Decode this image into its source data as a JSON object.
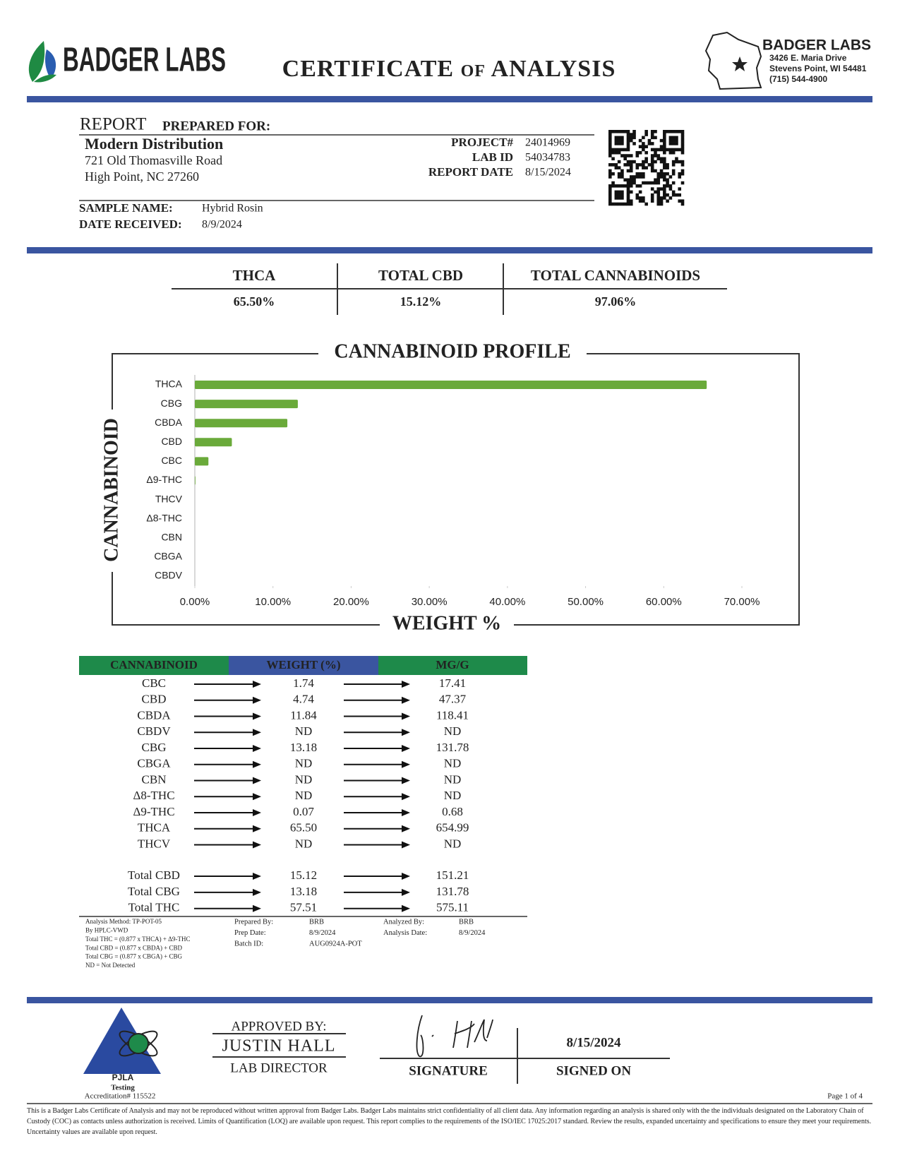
{
  "header": {
    "logo": "BADGER LABS",
    "title": "CERTIFICATE of ANALYSIS",
    "company": "BADGER LABS",
    "address": [
      "3426 E. Maria Drive",
      "Stevens Point, WI 54481",
      "(715) 544-4900"
    ]
  },
  "report": {
    "heading": "REPORT",
    "heading_rest": "PREPARED FOR:",
    "client": "Modern Distribution",
    "client_address": [
      "721 Old Thomasville Road",
      "High Point, NC 27260"
    ],
    "fields": [
      {
        "label": "PROJECT#",
        "value": "24014969"
      },
      {
        "label": "LAB ID",
        "value": "54034783"
      },
      {
        "label": "REPORT DATE",
        "value": "8/15/2024"
      }
    ],
    "sample": [
      {
        "label": "SAMPLE NAME:",
        "value": "Hybrid Rosin"
      },
      {
        "label": "DATE RECEIVED:",
        "value": "8/9/2024"
      }
    ]
  },
  "summary": {
    "headers": [
      "THCA",
      "TOTAL CBD",
      "TOTAL CANNABINOIDS"
    ],
    "values": [
      "65.50%",
      "15.12%",
      "97.06%"
    ]
  },
  "chart_data": {
    "type": "bar",
    "orientation": "horizontal",
    "title": "CANNABINOID PROFILE",
    "x_label": "WEIGHT %",
    "y_label": "CANNABINOID",
    "categories": [
      "THCA",
      "CBG",
      "CBDA",
      "CBD",
      "CBC",
      "Δ9-THC",
      "THCV",
      "Δ8-THC",
      "CBN",
      "CBGA",
      "CBDV"
    ],
    "values": [
      65.5,
      13.18,
      11.84,
      4.74,
      1.74,
      0.07,
      0,
      0,
      0,
      0,
      0
    ],
    "color": "#6aaa3a",
    "xlim": [
      0,
      70
    ],
    "xticks": [
      {
        "value": 0,
        "label": "0.00%"
      },
      {
        "value": 10,
        "label": "10.00%"
      },
      {
        "value": 20,
        "label": "20.00%"
      },
      {
        "value": 30,
        "label": "30.00%"
      },
      {
        "value": 40,
        "label": "40.00%"
      },
      {
        "value": 50,
        "label": "50.00%"
      },
      {
        "value": 60,
        "label": "60.00%"
      },
      {
        "value": 70,
        "label": "70.00%"
      }
    ]
  },
  "results": {
    "headers": [
      "CANNABINOID",
      "WEIGHT (%)",
      "MG/G"
    ],
    "rows": [
      [
        "CBC",
        "1.74",
        "17.41"
      ],
      [
        "CBD",
        "4.74",
        "47.37"
      ],
      [
        "CBDA",
        "11.84",
        "118.41"
      ],
      [
        "CBDV",
        "ND",
        "ND"
      ],
      [
        "CBG",
        "13.18",
        "131.78"
      ],
      [
        "CBGA",
        "ND",
        "ND"
      ],
      [
        "CBN",
        "ND",
        "ND"
      ],
      [
        "Δ8-THC",
        "ND",
        "ND"
      ],
      [
        "Δ9-THC",
        "0.07",
        "0.68"
      ],
      [
        "THCA",
        "65.50",
        "654.99"
      ],
      [
        "THCV",
        "ND",
        "ND"
      ]
    ],
    "totals": [
      [
        "Total CBD",
        "15.12",
        "151.21"
      ],
      [
        "Total CBG",
        "13.18",
        "131.78"
      ],
      [
        "Total THC",
        "57.51",
        "575.11"
      ]
    ]
  },
  "notes": {
    "method": [
      "Analysis Method: TP-POT-05",
      "By HPLC-VWD",
      "Total THC = (0.877 x THCA) + Δ9-THC",
      "Total CBD = (0.877 x CBDA) + CBD",
      "Total CBG = (0.877 x CBGA) + CBG",
      "ND = Not Detected"
    ],
    "prep": [
      {
        "label": "Prepared By:",
        "value": "BRB"
      },
      {
        "label": "Prep Date:",
        "value": "8/9/2024"
      },
      {
        "label": "Batch ID:",
        "value": "AUG0924A-POT"
      }
    ],
    "analysis": [
      {
        "label": "Analyzed By:",
        "value": "BRB"
      },
      {
        "label": "Analysis Date:",
        "value": "8/9/2024"
      }
    ]
  },
  "footer": {
    "approved_by": "APPROVED BY:",
    "name": "JUSTIN HALL",
    "role": "LAB DIRECTOR",
    "signature_label": "SIGNATURE",
    "signed_on_label": "SIGNED ON",
    "signed_on": "8/15/2024",
    "accreditation": [
      "PJLA",
      "Testing",
      "Accreditation# 115522"
    ],
    "page": "Page 1 of 4",
    "disclaimer": "This is a Badger Labs Certificate of Analysis and may not be reproduced without written approval from Badger Labs. Badger Labs maintains strict confidentiality of all client data. Any information regarding an analysis is shared only with the the individuals designated on the Laboratory Chain of Custody (COC) as contacts unless authorization is received. Limits of Quantification (LOQ) are available upon request. This report complies to the requirements of the ISO/IEC 17025:2017 standard. Review the results, expanded uncertainty and specifications to ensure they meet your requirements. Uncertainty values are available upon request."
  }
}
